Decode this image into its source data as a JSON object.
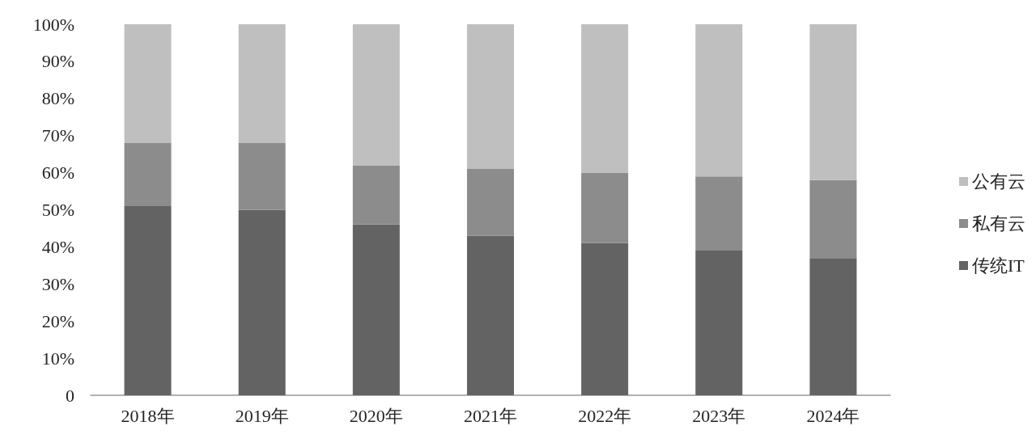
{
  "chart_data": {
    "type": "bar",
    "stacked": true,
    "categories": [
      "2018年",
      "2019年",
      "2020年",
      "2021年",
      "2022年",
      "2023年",
      "2024年"
    ],
    "series": [
      {
        "name": "传统IT",
        "color": "#636363",
        "values": [
          51,
          50,
          46,
          43,
          41,
          39,
          37
        ]
      },
      {
        "name": "私有云",
        "color": "#8c8c8c",
        "values": [
          17,
          18,
          16,
          18,
          19,
          20,
          21
        ]
      },
      {
        "name": "公有云",
        "color": "#bfbfbf",
        "values": [
          32,
          32,
          38,
          39,
          40,
          41,
          42
        ]
      }
    ],
    "ylim": [
      0,
      100
    ],
    "yticks": [
      0,
      {
        "value": 10,
        "label": "10%"
      },
      {
        "value": 20,
        "label": "20%"
      },
      {
        "value": 30,
        "label": "30%"
      },
      {
        "value": 40,
        "label": "40%"
      },
      {
        "value": 50,
        "label": "50%"
      },
      {
        "value": 60,
        "label": "60%"
      },
      {
        "value": 70,
        "label": "70%"
      },
      {
        "value": 80,
        "label": "80%"
      },
      {
        "value": 90,
        "label": "90%"
      },
      {
        "value": 100,
        "label": "100%"
      }
    ],
    "grid": false,
    "legend": "right"
  }
}
